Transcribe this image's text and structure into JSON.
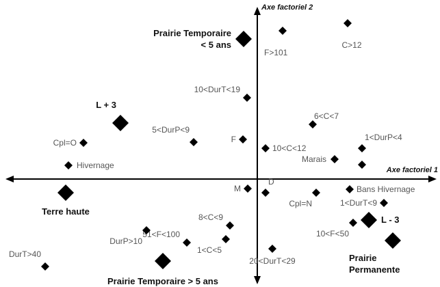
{
  "chart_data": {
    "type": "scatter",
    "title": "",
    "axes": {
      "x_label": "Axe factoriel 1",
      "y_label": "Axe factoriel 2",
      "x_range": [
        -365,
        270
      ],
      "y_range": [
        -155,
        243
      ]
    },
    "grid": false,
    "legend": "none",
    "points": [
      {
        "label": "Prairie Temporaire\n< 5 ans",
        "x": -20,
        "y": 205,
        "size": "large",
        "bold": true,
        "anchor": "left"
      },
      {
        "label": "",
        "x": 37,
        "y": 217,
        "size": "small"
      },
      {
        "label": "C>12",
        "x": 132,
        "y": 228,
        "size": "small",
        "anchor": "below"
      },
      {
        "label": "F>101",
        "x": 0,
        "y": 185,
        "size": "none",
        "anchor": "right"
      },
      {
        "label": "10<DurT<19",
        "x": -15,
        "y": 119,
        "size": "small",
        "anchor": "left-up"
      },
      {
        "label": "L + 3",
        "x": -200,
        "y": 82,
        "size": "large",
        "bold": true,
        "anchor": "above-left"
      },
      {
        "label": "6<C<7",
        "x": 81,
        "y": 80,
        "size": "small",
        "anchor": "right-up"
      },
      {
        "label": "5<DurP<9",
        "x": -93,
        "y": 54,
        "size": "small",
        "anchor": "above-left"
      },
      {
        "label": "Cpl=O",
        "x": -254,
        "y": 53,
        "size": "small",
        "anchor": "left"
      },
      {
        "label": "F",
        "x": -21,
        "y": 58,
        "size": "small",
        "anchor": "left"
      },
      {
        "label": "10<C<12",
        "x": 12,
        "y": 45,
        "size": "small",
        "anchor": "right"
      },
      {
        "label": "1<DurP<4",
        "x": 153,
        "y": 45,
        "size": "small",
        "anchor": "above-right"
      },
      {
        "label": "Marais",
        "x": 113,
        "y": 29,
        "size": "small",
        "anchor": "left"
      },
      {
        "label": "Hivernage",
        "x": -276,
        "y": 20,
        "size": "small",
        "anchor": "right"
      },
      {
        "label": "",
        "x": 153,
        "y": 21,
        "size": "small"
      },
      {
        "label": "Terre haute",
        "x": -280,
        "y": -20,
        "size": "large",
        "bold": true,
        "anchor": "below"
      },
      {
        "label": "M",
        "x": -14,
        "y": -14,
        "size": "small",
        "anchor": "left"
      },
      {
        "label": "D",
        "x": 12,
        "y": -20,
        "size": "small",
        "anchor": "above-right"
      },
      {
        "label": "Cpl=N",
        "x": 86,
        "y": -20,
        "size": "small",
        "anchor": "below-left"
      },
      {
        "label": "Bans Hivernage",
        "x": 135,
        "y": -15,
        "size": "small",
        "anchor": "right"
      },
      {
        "label": "1<DurT<9",
        "x": 185,
        "y": -35,
        "size": "small",
        "anchor": "left"
      },
      {
        "label": "L - 3",
        "x": 163,
        "y": -60,
        "size": "large",
        "bold": true,
        "anchor": "right"
      },
      {
        "label": "",
        "x": 140,
        "y": -64,
        "size": "small"
      },
      {
        "label": "8<C<9",
        "x": -40,
        "y": -68,
        "size": "small",
        "anchor": "left-up"
      },
      {
        "label": "51<F<100",
        "x": -103,
        "y": -93,
        "size": "small",
        "anchor": "left-up"
      },
      {
        "label": "DurP>10",
        "x": -162,
        "y": -75,
        "size": "small",
        "anchor": "below-left"
      },
      {
        "label": "10<F<50",
        "x": 140,
        "y": -64,
        "size": "none",
        "anchor": "below-left"
      },
      {
        "label": "1<C<5",
        "x": -46,
        "y": -88,
        "size": "small",
        "anchor": "below-left"
      },
      {
        "label": "20<DurT<29",
        "x": 22,
        "y": -102,
        "size": "small",
        "anchor": "below"
      },
      {
        "label": "Prairie\nPermanente",
        "x": 198,
        "y": -90,
        "size": "large",
        "bold": true,
        "anchor": "below-right"
      },
      {
        "label": "DurT>40",
        "x": -310,
        "y": -128,
        "size": "small",
        "anchor": "above-left"
      },
      {
        "label": "Prairie Temporaire > 5 ans",
        "x": -138,
        "y": -120,
        "size": "large",
        "bold": true,
        "anchor": "below"
      }
    ]
  }
}
